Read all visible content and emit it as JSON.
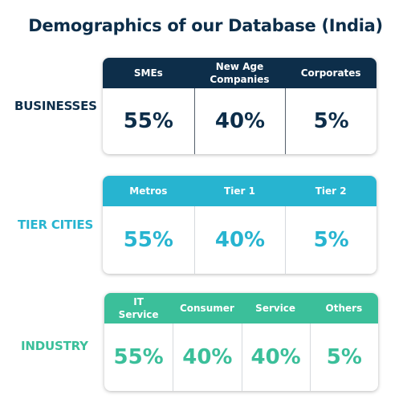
{
  "title": "Demographics of our Database (India)",
  "sections": [
    {
      "label": "BUSINESSES",
      "headers": [
        "SMEs",
        "New Age Companies",
        "Corporates"
      ],
      "values": [
        "55%",
        "40%",
        "5%"
      ]
    },
    {
      "label": "TIER CITIES",
      "headers": [
        "Metros",
        "Tier 1",
        "Tier 2"
      ],
      "values": [
        "55%",
        "40%",
        "5%"
      ]
    },
    {
      "label": "INDUSTRY",
      "headers": [
        "IT Service",
        "Consumer",
        "Service",
        "Others"
      ],
      "values": [
        "55%",
        "40%",
        "40%",
        "5%"
      ]
    }
  ]
}
